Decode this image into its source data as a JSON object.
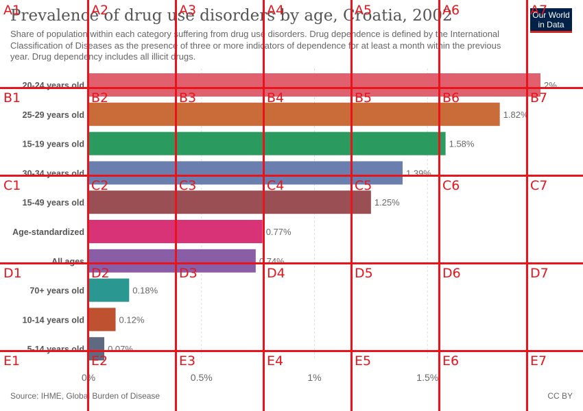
{
  "header": {
    "title": "Prevalence of drug use disorders by age, Croatia, 2002",
    "subtitle": "Share of population within each category suffering from drug use disorders. Drug dependence is defined by the International Classification of Diseases as the presence of three or more indicators of dependence for at least a month within the previous year. Drug dependency includes all illicit drugs.",
    "logo_line1": "Our World",
    "logo_line2": "in Data"
  },
  "footer": {
    "source": "Source: IHME, Global Burden of Disease",
    "license": "CC BY"
  },
  "chart_data": {
    "type": "bar",
    "orientation": "horizontal",
    "categories": [
      "20-24 years old",
      "25-29 years old",
      "15-19 years old",
      "30-34 years old",
      "15-49 years old",
      "Age-standardized",
      "All ages",
      "70+ years old",
      "10-14 years old",
      "5-14 years old"
    ],
    "values": [
      2.0,
      1.82,
      1.58,
      1.39,
      1.25,
      0.77,
      0.74,
      0.18,
      0.12,
      0.07
    ],
    "value_labels": [
      "2%",
      "1.82%",
      "1.58%",
      "1.39%",
      "1.25%",
      "0.77%",
      "0.74%",
      "0.18%",
      "0.12%",
      "0.07%"
    ],
    "colors": [
      "#e0606e",
      "#c96c3a",
      "#2a9a5e",
      "#6a7fad",
      "#9a4f55",
      "#d93378",
      "#8a5ea6",
      "#2a9790",
      "#be5230",
      "#5e6a80"
    ],
    "xticks": [
      0,
      0.5,
      1,
      1.5
    ],
    "xtick_labels": [
      "0%",
      "0.5%",
      "1%",
      "1.5%"
    ],
    "xlim": [
      0,
      2
    ],
    "grid": "vertical dashed"
  },
  "overlay_grid": {
    "rows": [
      "A",
      "B",
      "C",
      "D",
      "E"
    ],
    "cols": [
      "1",
      "2",
      "3",
      "4",
      "5",
      "6",
      "7"
    ],
    "color": "#e8141c"
  }
}
